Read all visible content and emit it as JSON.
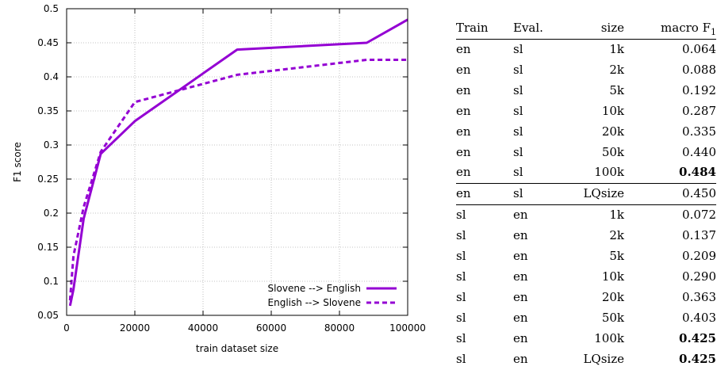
{
  "chart_data": {
    "type": "line",
    "xlabel": "train dataset size",
    "ylabel": "F1 score",
    "xlim": [
      0,
      100000
    ],
    "ylim": [
      0.05,
      0.5
    ],
    "xticks": [
      0,
      20000,
      40000,
      60000,
      80000,
      100000
    ],
    "yticks": [
      0.05,
      0.1,
      0.15,
      0.2,
      0.25,
      0.3,
      0.35,
      0.4,
      0.45,
      0.5
    ],
    "grid": true,
    "legend_position": "bottom-right",
    "series": [
      {
        "name": "Slovene --> English",
        "style": "solid",
        "color": "#9400d3",
        "x": [
          1000,
          2000,
          5000,
          10000,
          20000,
          50000,
          88000,
          100000
        ],
        "y": [
          0.064,
          0.088,
          0.192,
          0.287,
          0.335,
          0.44,
          0.45,
          0.484
        ]
      },
      {
        "name": "English --> Slovene",
        "style": "dashed",
        "color": "#9400d3",
        "x": [
          1000,
          2000,
          5000,
          10000,
          20000,
          50000,
          88000,
          100000
        ],
        "y": [
          0.072,
          0.137,
          0.209,
          0.29,
          0.363,
          0.403,
          0.425,
          0.425
        ]
      }
    ]
  },
  "table": {
    "headers": {
      "train": "Train",
      "eval": "Eval.",
      "size": "size",
      "f1": "macro F",
      "f1_sub": "1"
    },
    "rows": [
      {
        "train": "en",
        "eval": "sl",
        "size": "1k",
        "f1": "0.064",
        "bold": false
      },
      {
        "train": "en",
        "eval": "sl",
        "size": "2k",
        "f1": "0.088",
        "bold": false
      },
      {
        "train": "en",
        "eval": "sl",
        "size": "5k",
        "f1": "0.192",
        "bold": false
      },
      {
        "train": "en",
        "eval": "sl",
        "size": "10k",
        "f1": "0.287",
        "bold": false
      },
      {
        "train": "en",
        "eval": "sl",
        "size": "20k",
        "f1": "0.335",
        "bold": false
      },
      {
        "train": "en",
        "eval": "sl",
        "size": "50k",
        "f1": "0.440",
        "bold": false
      },
      {
        "train": "en",
        "eval": "sl",
        "size": "100k",
        "f1": "0.484",
        "bold": true
      },
      {
        "train": "en",
        "eval": "sl",
        "size": "LQsize",
        "f1": "0.450",
        "bold": false,
        "sep": true
      },
      {
        "train": "sl",
        "eval": "en",
        "size": "1k",
        "f1": "0.072",
        "bold": false,
        "sep": true
      },
      {
        "train": "sl",
        "eval": "en",
        "size": "2k",
        "f1": "0.137",
        "bold": false
      },
      {
        "train": "sl",
        "eval": "en",
        "size": "5k",
        "f1": "0.209",
        "bold": false
      },
      {
        "train": "sl",
        "eval": "en",
        "size": "10k",
        "f1": "0.290",
        "bold": false
      },
      {
        "train": "sl",
        "eval": "en",
        "size": "20k",
        "f1": "0.363",
        "bold": false
      },
      {
        "train": "sl",
        "eval": "en",
        "size": "50k",
        "f1": "0.403",
        "bold": false
      },
      {
        "train": "sl",
        "eval": "en",
        "size": "100k",
        "f1": "0.425",
        "bold": true
      },
      {
        "train": "sl",
        "eval": "en",
        "size": "LQsize",
        "f1": "0.425",
        "bold": true
      }
    ]
  }
}
